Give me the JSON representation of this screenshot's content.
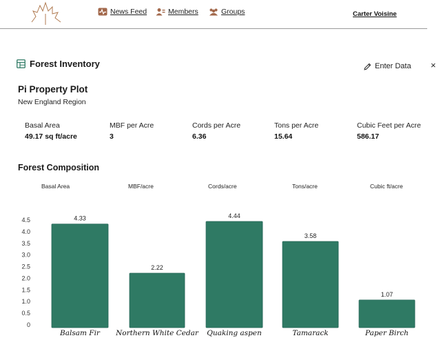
{
  "nav": {
    "items": [
      {
        "label": "News Feed",
        "icon": "activity-icon"
      },
      {
        "label": "Members",
        "icon": "members-icon"
      },
      {
        "label": "Groups",
        "icon": "groups-icon"
      }
    ],
    "user": "Carter Voisine"
  },
  "panel": {
    "title": "Forest Inventory",
    "enter_data_label": "Enter Data",
    "close_label": "×"
  },
  "plot": {
    "name": "Pi Property Plot",
    "region": "New England Region"
  },
  "metrics": [
    {
      "label": "Basal Area",
      "value": "49.17 sq ft/acre"
    },
    {
      "label": "MBF per Acre",
      "value": "3"
    },
    {
      "label": "Cords per Acre",
      "value": "6.36"
    },
    {
      "label": "Tons per Acre",
      "value": "15.64"
    },
    {
      "label": "Cubic Feet per Acre",
      "value": "586.17"
    }
  ],
  "composition": {
    "title": "Forest Composition",
    "tabs": [
      "Basal Area",
      "MBF/acre",
      "Cords/acre",
      "Tons/acre",
      "Cubic ft/acre"
    ]
  },
  "colors": {
    "bar": "#2f7a64",
    "bar_edge": "#28685a",
    "nav_icon": "#a2684b"
  },
  "chart_data": {
    "type": "bar",
    "categories": [
      "Balsam Fir",
      "Northern White Cedar",
      "Quaking aspen",
      "Tamarack",
      "Paper Birch"
    ],
    "values": [
      4.33,
      2.22,
      4.44,
      3.58,
      1.07
    ],
    "value_labels": [
      "4.33",
      "2.22",
      "4.44",
      "3.58",
      "1.07"
    ],
    "yticks": [
      "0",
      "0.5",
      "1.0",
      "1.5",
      "2.0",
      "2.5",
      "3.0",
      "3.5",
      "4.0",
      "4.5"
    ],
    "ylim": [
      0,
      4.5
    ],
    "grid": false,
    "legend": "none"
  }
}
